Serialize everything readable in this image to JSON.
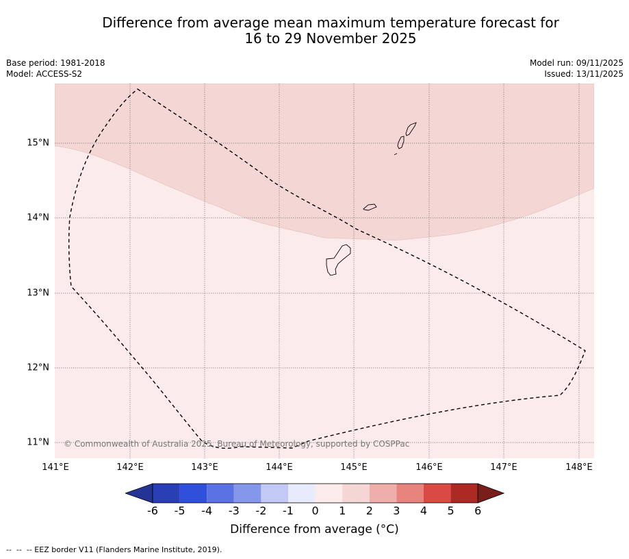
{
  "title_line1": "Difference from average mean maximum temperature forecast for",
  "title_line2": "16 to 29 November 2025",
  "base_period": "Base period: 1981-2018",
  "model": "Model: ACCESS-S2",
  "model_run": "Model run: 09/11/2025",
  "issued": "Issued: 13/11/2025",
  "copyright": "© Commonwealth of Australia 2025, Bureau of Meteorology, supported by COSPPac",
  "x_ticks": [
    "141°E",
    "142°E",
    "143°E",
    "144°E",
    "145°E",
    "146°E",
    "147°E",
    "148°E"
  ],
  "y_ticks": [
    "15°N",
    "14°N",
    "13°N",
    "12°N",
    "11°N"
  ],
  "map_colors": {
    "band_1_to_2": "#f4d6d4",
    "band_0_to_1": "#fbebea",
    "grid": "#666666"
  },
  "colorbar": {
    "labels": [
      "-6",
      "-5",
      "-4",
      "-3",
      "-2",
      "-1",
      "0",
      "1",
      "2",
      "3",
      "4",
      "5",
      "6"
    ],
    "colors": [
      "#253494",
      "#2b3fb4",
      "#3050dc",
      "#5b72e4",
      "#8497ea",
      "#c2c9f4",
      "#e8ebfb",
      "#fbebea",
      "#f4d6d4",
      "#eeaeaa",
      "#e8847e",
      "#d94a43",
      "#ad2a24",
      "#7a1e1b"
    ],
    "title": "Difference from average ($^\\circ$C)"
  },
  "cb_title_text": "Difference from average (°C)",
  "footnote": "--  --  -- EEZ border V11 (Flanders Marine Institute, 2019)."
}
